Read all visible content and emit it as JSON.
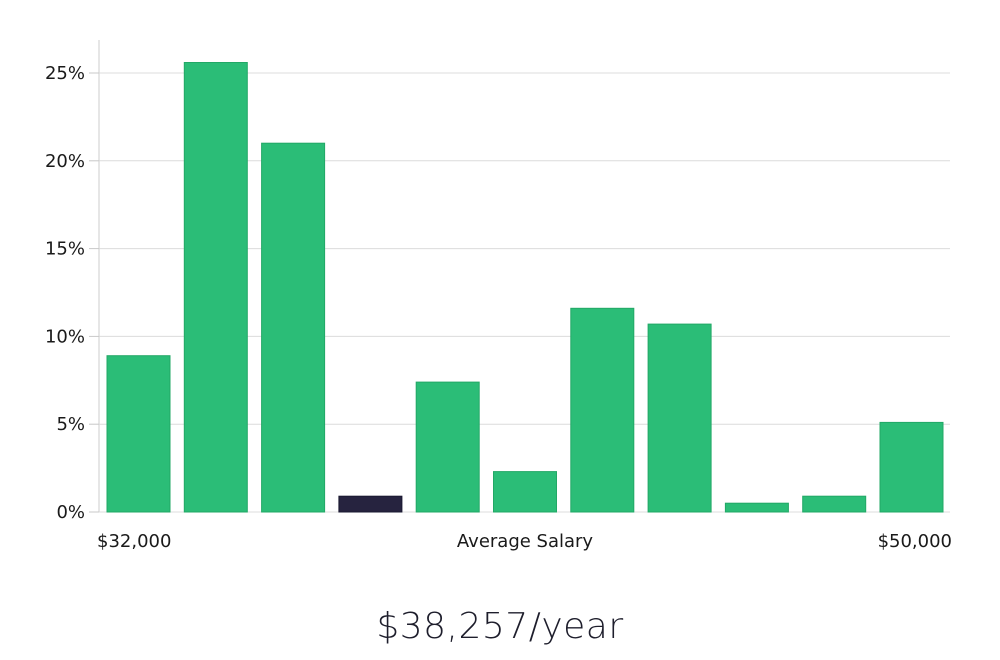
{
  "chart_data": {
    "type": "bar",
    "title": "",
    "xlabel": "Average Salary",
    "ylabel": "",
    "x_range_labels": {
      "min": "$32,000",
      "max": "$50,000"
    },
    "ylim": [
      0,
      27
    ],
    "yticks": [
      0,
      5,
      10,
      15,
      20,
      25
    ],
    "ytick_labels": [
      "0%",
      "5%",
      "10%",
      "15%",
      "20%",
      "25%"
    ],
    "grid": true,
    "bar_color": "#2bbd77",
    "highlight_color": "#26233f",
    "highlight_index": 3,
    "values": [
      8.9,
      25.6,
      21.0,
      0.9,
      7.4,
      2.3,
      11.6,
      10.7,
      0.5,
      0.9,
      5.1
    ]
  },
  "summary": {
    "salary_text": "$38,257/year"
  }
}
